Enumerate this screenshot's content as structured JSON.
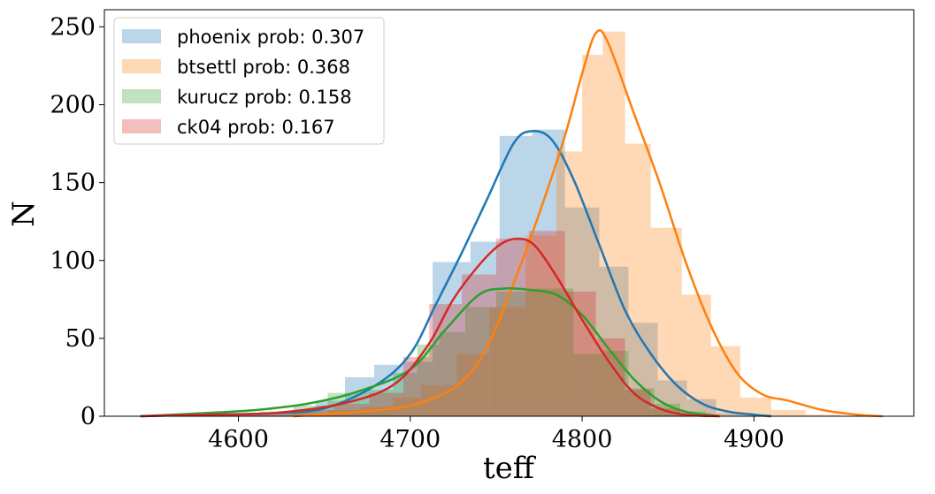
{
  "chart_data": {
    "type": "histogram",
    "xlabel": "teff",
    "ylabel": "N",
    "xlim": [
      4522,
      4993
    ],
    "ylim": [
      0,
      261
    ],
    "xticks": [
      4600,
      4700,
      4800,
      4900
    ],
    "yticks": [
      0,
      50,
      100,
      150,
      200,
      250
    ],
    "legend_position": "top-left",
    "grid": false,
    "series": [
      {
        "name": "phoenix prob: 0.307",
        "color": "#1f77b4",
        "bins": [
          [
            4543,
            4560,
            0
          ],
          [
            4560,
            4577,
            1
          ],
          [
            4577,
            4594,
            1
          ],
          [
            4594,
            4611,
            1
          ],
          [
            4611,
            4628,
            2
          ],
          [
            4628,
            4645,
            3
          ],
          [
            4645,
            4662,
            10
          ],
          [
            4662,
            4679,
            25
          ],
          [
            4679,
            4696,
            33
          ],
          [
            4696,
            4713,
            35
          ],
          [
            4713,
            4735,
            99
          ],
          [
            4735,
            4752,
            112
          ],
          [
            4752,
            4771,
            180
          ],
          [
            4771,
            4790,
            184
          ],
          [
            4790,
            4810,
            134
          ],
          [
            4810,
            4827,
            96
          ],
          [
            4827,
            4844,
            60
          ],
          [
            4844,
            4861,
            23
          ],
          [
            4861,
            4878,
            11
          ],
          [
            4878,
            4895,
            2
          ],
          [
            4895,
            4910,
            1
          ]
        ],
        "kde_x": [
          4543,
          4580,
          4620,
          4650,
          4680,
          4700,
          4715,
          4730,
          4745,
          4760,
          4770,
          4782,
          4795,
          4810,
          4825,
          4840,
          4855,
          4870,
          4885,
          4900,
          4910
        ],
        "kde_y": [
          0,
          1,
          2,
          5,
          20,
          40,
          72,
          105,
          140,
          175,
          183,
          178,
          152,
          110,
          68,
          40,
          20,
          8,
          3,
          1,
          0
        ]
      },
      {
        "name": "btsettl prob: 0.368",
        "color": "#ff7f0e",
        "bins": [
          [
            4632,
            4652,
            2
          ],
          [
            4652,
            4671,
            4
          ],
          [
            4671,
            4690,
            6
          ],
          [
            4690,
            4706,
            12
          ],
          [
            4706,
            4727,
            20
          ],
          [
            4727,
            4746,
            40
          ],
          [
            4746,
            4767,
            70
          ],
          [
            4767,
            4785,
            116
          ],
          [
            4785,
            4800,
            170
          ],
          [
            4800,
            4812,
            232
          ],
          [
            4812,
            4825,
            247
          ],
          [
            4825,
            4840,
            175
          ],
          [
            4840,
            4858,
            121
          ],
          [
            4858,
            4875,
            78
          ],
          [
            4875,
            4892,
            45
          ],
          [
            4892,
            4910,
            12
          ],
          [
            4910,
            4930,
            4
          ],
          [
            4930,
            4950,
            1
          ]
        ],
        "kde_x": [
          4632,
          4660,
          4690,
          4710,
          4730,
          4745,
          4760,
          4775,
          4790,
          4800,
          4808,
          4815,
          4830,
          4845,
          4860,
          4875,
          4890,
          4905,
          4920,
          4940,
          4960,
          4975
        ],
        "kde_y": [
          0,
          2,
          5,
          10,
          22,
          45,
          85,
          130,
          180,
          220,
          246,
          240,
          195,
          150,
          100,
          58,
          28,
          14,
          10,
          4,
          1,
          0
        ]
      },
      {
        "name": "kurucz prob: 0.158",
        "color": "#2ca02c",
        "bins": [
          [
            4590,
            4612,
            2
          ],
          [
            4612,
            4632,
            3
          ],
          [
            4632,
            4652,
            7
          ],
          [
            4652,
            4671,
            15
          ],
          [
            4671,
            4690,
            17
          ],
          [
            4690,
            4704,
            28
          ],
          [
            4704,
            4717,
            46
          ],
          [
            4717,
            4732,
            54
          ],
          [
            4732,
            4750,
            70
          ],
          [
            4750,
            4768,
            80
          ],
          [
            4768,
            4782,
            82
          ],
          [
            4782,
            4795,
            82
          ],
          [
            4795,
            4812,
            40
          ],
          [
            4812,
            4827,
            42
          ],
          [
            4827,
            4842,
            18
          ],
          [
            4842,
            4857,
            8
          ],
          [
            4857,
            4872,
            3
          ]
        ],
        "kde_x": [
          4543,
          4580,
          4610,
          4640,
          4670,
          4700,
          4720,
          4740,
          4755,
          4770,
          4785,
          4800,
          4815,
          4830,
          4845,
          4860,
          4880
        ],
        "kde_y": [
          0,
          2,
          4,
          8,
          16,
          30,
          55,
          78,
          82,
          81,
          78,
          65,
          44,
          24,
          10,
          3,
          0
        ]
      },
      {
        "name": "ck04 prob: 0.167",
        "color": "#d62728",
        "bins": [
          [
            4585,
            4610,
            1
          ],
          [
            4610,
            4635,
            2
          ],
          [
            4635,
            4655,
            4
          ],
          [
            4655,
            4676,
            8
          ],
          [
            4676,
            4696,
            15
          ],
          [
            4696,
            4711,
            38
          ],
          [
            4711,
            4730,
            72
          ],
          [
            4730,
            4750,
            91
          ],
          [
            4750,
            4769,
            114
          ],
          [
            4769,
            4790,
            119
          ],
          [
            4790,
            4808,
            80
          ],
          [
            4808,
            4825,
            50
          ],
          [
            4825,
            4840,
            17
          ],
          [
            4840,
            4857,
            5
          ],
          [
            4857,
            4875,
            2
          ]
        ],
        "kde_x": [
          4543,
          4580,
          4620,
          4660,
          4690,
          4710,
          4725,
          4740,
          4752,
          4762,
          4772,
          4785,
          4800,
          4815,
          4830,
          4845,
          4860,
          4880
        ],
        "kde_y": [
          0,
          1,
          2,
          8,
          20,
          45,
          75,
          97,
          110,
          114,
          110,
          90,
          62,
          36,
          15,
          5,
          1,
          0
        ]
      }
    ]
  }
}
